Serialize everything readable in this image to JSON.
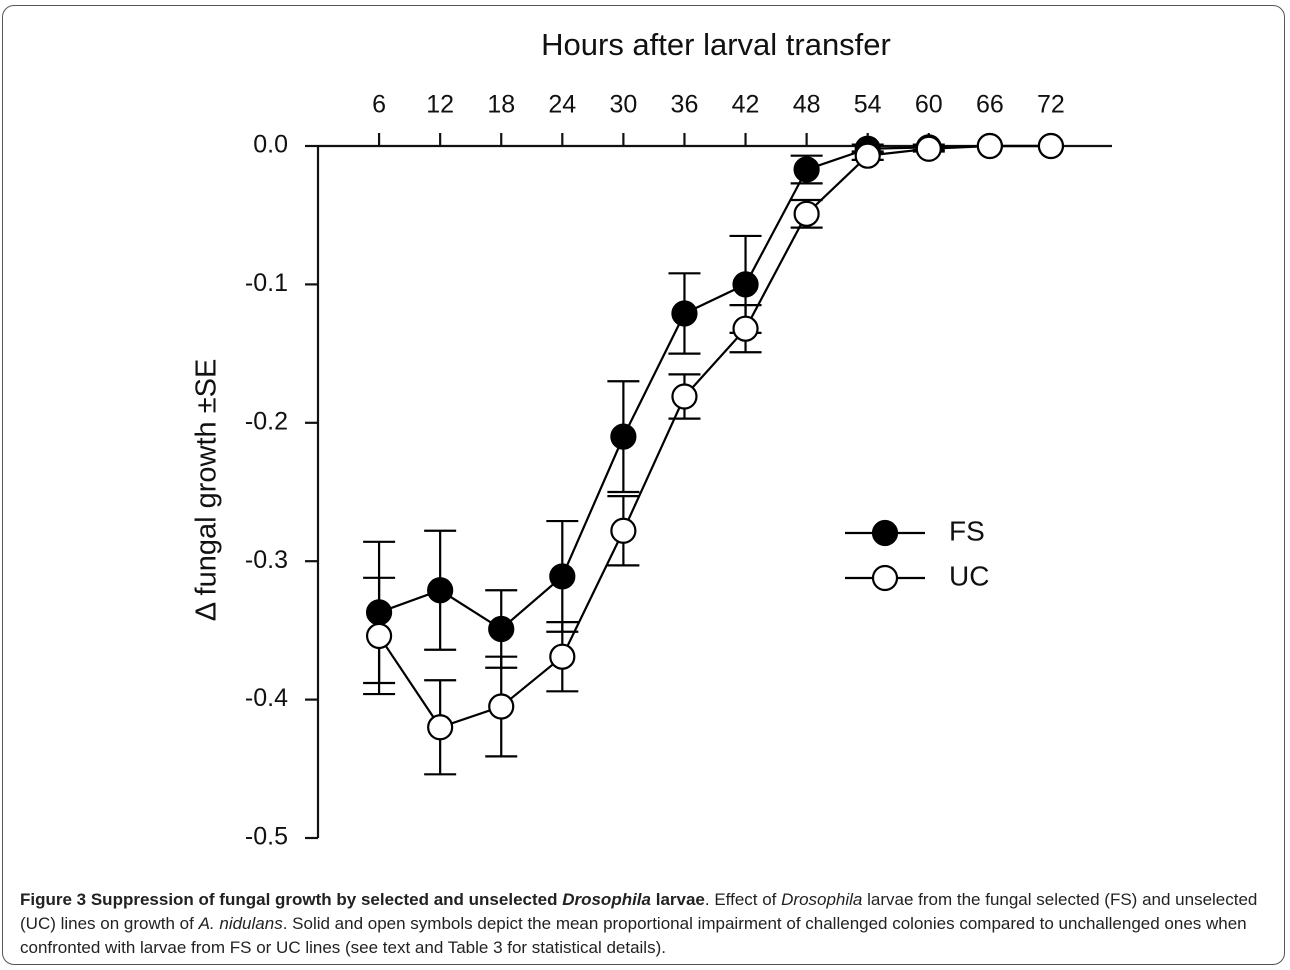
{
  "chart_data": {
    "type": "line",
    "title": "Hours after larval transfer",
    "y_label": "Δ fungal growth ±SE",
    "x": [
      6,
      12,
      18,
      24,
      30,
      36,
      42,
      48,
      54,
      60,
      66,
      72
    ],
    "series": [
      {
        "name": "FS",
        "color": "#000000",
        "marker_fill": "#000000",
        "values": [
          -0.337,
          -0.321,
          -0.349,
          -0.311,
          -0.21,
          -0.121,
          -0.1,
          -0.017,
          -0.002,
          -0.001,
          0,
          0
        ],
        "errors": [
          0.051,
          0.043,
          0.028,
          0.04,
          0.04,
          0.029,
          0.035,
          0.01,
          0.003,
          0.002,
          0,
          0
        ]
      },
      {
        "name": "UC",
        "color": "#000000",
        "marker_fill": "#ffffff",
        "values": [
          -0.354,
          -0.42,
          -0.405,
          -0.369,
          -0.278,
          -0.181,
          -0.132,
          -0.049,
          -0.007,
          -0.002,
          0,
          0
        ],
        "errors": [
          0.042,
          0.034,
          0.036,
          0.025,
          0.025,
          0.016,
          0.017,
          0.01,
          0.003,
          0.002,
          0,
          0
        ]
      }
    ],
    "xlim": [
      0,
      78
    ],
    "ylim": [
      -0.5,
      0
    ],
    "xticks": [
      6,
      12,
      18,
      24,
      30,
      36,
      42,
      48,
      54,
      60,
      66,
      72
    ],
    "yticks": [
      {
        "value": 0,
        "label": "0.0"
      },
      {
        "value": -0.1,
        "label": "-0.1"
      },
      {
        "value": -0.2,
        "label": "-0.2"
      },
      {
        "value": -0.3,
        "label": "-0.3"
      },
      {
        "value": -0.4,
        "label": "-0.4"
      },
      {
        "value": -0.5,
        "label": "-0.5"
      }
    ],
    "x_axis_position": "top",
    "legend": "right"
  },
  "caption": [
    {
      "text": "Figure 3 Suppression of fungal growth by selected and unselected "
    },
    {
      "text": "Drosophila"
    },
    {
      "text": " larvae"
    },
    {
      "text": ". Effect of "
    },
    {
      "text": "Drosophila"
    },
    {
      "text": " larvae from the fungal selected (FS) and unselected (UC) lines on growth of "
    },
    {
      "text": "A. nidulans"
    },
    {
      "text": ". Solid and open symbols depict the mean proportional impairment of challenged colonies compared to unchallenged ones when confronted with larvae from FS or UC lines (see text and Table 3 for statistical details)."
    }
  ]
}
